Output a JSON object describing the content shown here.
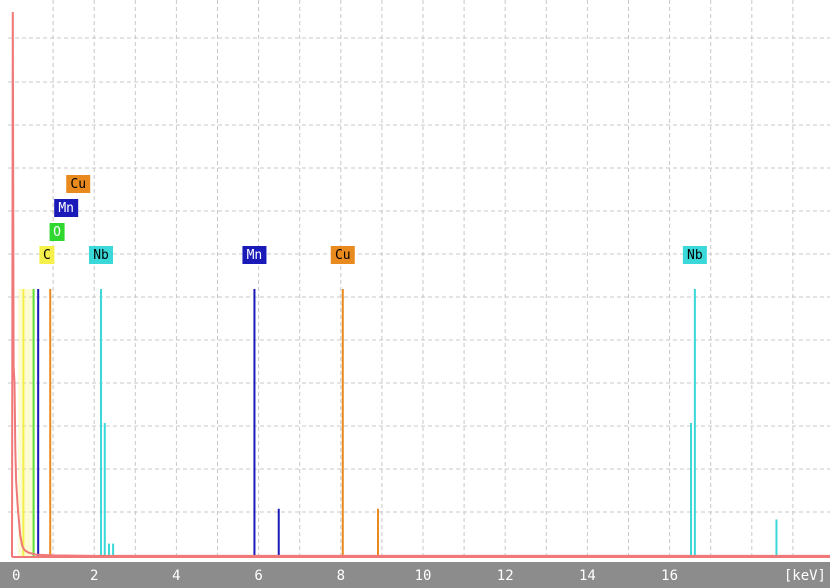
{
  "chart_data": {
    "type": "line",
    "title": "",
    "xlabel": "",
    "ylabel": "",
    "x_unit": "[keV]",
    "xlim": [
      0,
      20
    ],
    "x_ticks": [
      "0",
      "2",
      "4",
      "6",
      "8",
      "10",
      "12",
      "14",
      "16"
    ],
    "grid": true,
    "spectrum": {
      "name": "",
      "color": "#f07878",
      "x": [
        0.0,
        0.02,
        0.04,
        0.06,
        0.08,
        0.1,
        0.14,
        0.2,
        0.25,
        0.3,
        0.4,
        0.6,
        1.0,
        2.0,
        4.0,
        8.0,
        12.0,
        16.0,
        20.0
      ],
      "y": [
        0,
        100,
        35,
        32,
        20,
        14,
        9,
        4,
        2,
        1.3,
        0.8,
        0.4,
        0.3,
        0.2,
        0.2,
        0.2,
        0.2,
        0.2,
        0.2
      ]
    },
    "markers": [
      {
        "element": "C",
        "color": "#f5f04a",
        "label_fg": "#000000",
        "label_rows": [
          0
        ],
        "lines": [
          {
            "energy": 0.277,
            "height": 1.0
          }
        ]
      },
      {
        "element": "O",
        "color": "#2ed82e",
        "label_fg": "#ffffff",
        "label_rows": [
          1
        ],
        "lines": [
          {
            "energy": 0.525,
            "height": 1.0
          }
        ]
      },
      {
        "element": "Mn",
        "color": "#1a1ab8",
        "label_fg": "#ffffff",
        "label_rows": [
          2,
          0
        ],
        "lines": [
          {
            "energy": 0.637,
            "height": 1.0
          },
          {
            "energy": 5.899,
            "height": 1.0
          },
          {
            "energy": 6.49,
            "height": 0.18
          }
        ]
      },
      {
        "element": "Cu",
        "color": "#e98a1f",
        "label_fg": "#000000",
        "label_rows": [
          3,
          0
        ],
        "lines": [
          {
            "energy": 0.93,
            "height": 1.0
          },
          {
            "energy": 8.048,
            "height": 1.0
          },
          {
            "energy": 8.905,
            "height": 0.18
          }
        ]
      },
      {
        "element": "Nb",
        "color": "#3ad8d8",
        "label_fg": "#000000",
        "label_rows": [
          0,
          0
        ],
        "lines": [
          {
            "energy": 2.166,
            "height": 1.0
          },
          {
            "energy": 2.257,
            "height": 0.5
          },
          {
            "energy": 2.36,
            "height": 0.05
          },
          {
            "energy": 2.46,
            "height": 0.05
          },
          {
            "energy": 16.615,
            "height": 1.0
          },
          {
            "energy": 16.521,
            "height": 0.5
          },
          {
            "energy": 18.6,
            "height": 0.14
          }
        ]
      }
    ],
    "marker_label_positions": [
      {
        "element": "C",
        "energy": 0.277
      },
      {
        "element": "O",
        "energy": 0.525
      },
      {
        "element": "Mn",
        "energy": 0.637
      },
      {
        "element": "Cu",
        "energy": 0.93
      },
      {
        "element": "Nb",
        "energy": 2.166
      },
      {
        "element": "Mn",
        "energy": 5.899
      },
      {
        "element": "Cu",
        "energy": 8.048
      },
      {
        "element": "Nb",
        "energy": 16.615
      }
    ]
  }
}
